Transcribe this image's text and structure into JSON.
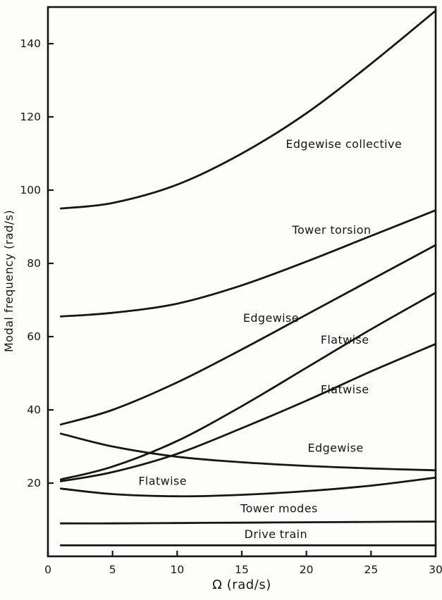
{
  "figure": {
    "background": "#fdfdfb",
    "ink": "#161616"
  },
  "chart_data": {
    "type": "line",
    "title": "",
    "xlabel": "Ω (rad/s)",
    "ylabel": "Modal frequency (rad/s)",
    "xlim": [
      0,
      30
    ],
    "ylim": [
      0,
      150
    ],
    "xticks": [
      0,
      5,
      10,
      15,
      20,
      25,
      30
    ],
    "yticks": [
      20,
      40,
      60,
      80,
      100,
      120,
      140
    ],
    "grid": false,
    "legend": "inline-annotations",
    "x": [
      1,
      5,
      10,
      15,
      20,
      25,
      30
    ],
    "series": [
      {
        "name": "Edgewise collective",
        "values": [
          95,
          96.5,
          101.5,
          110,
          121,
          134.5,
          149
        ]
      },
      {
        "name": "Tower torsion",
        "values": [
          65.5,
          66.5,
          69,
          74,
          80.5,
          87.5,
          94.5
        ]
      },
      {
        "name": "Edgewise",
        "values": [
          36,
          40,
          47.5,
          56.5,
          66,
          75.5,
          85
        ]
      },
      {
        "name": "Flatwise",
        "values": [
          21,
          24.5,
          31.5,
          41,
          51.5,
          62,
          72
        ]
      },
      {
        "name": "Flatwise",
        "values": [
          20.5,
          23,
          28,
          35,
          42.5,
          50.5,
          58
        ]
      },
      {
        "name": "Edgewise",
        "values": [
          33.5,
          30,
          27.2,
          25.7,
          24.7,
          24,
          23.5
        ]
      },
      {
        "name": "Flatwise",
        "values": [
          18.5,
          17,
          16.4,
          16.8,
          17.8,
          19.3,
          21.5
        ]
      },
      {
        "name": "Tower modes",
        "values": [
          9,
          9,
          9.1,
          9.2,
          9.3,
          9.4,
          9.5
        ]
      },
      {
        "name": "Drive train",
        "values": [
          3,
          3,
          3,
          3,
          3,
          3,
          3
        ]
      }
    ],
    "annotations": [
      {
        "text": "Edgewise collective",
        "x": 18.4,
        "y": 112.5
      },
      {
        "text": "Tower torsion",
        "x": 18.9,
        "y": 89
      },
      {
        "text": "Edgewise",
        "x": 15.1,
        "y": 65
      },
      {
        "text": "Flatwise",
        "x": 21.1,
        "y": 59
      },
      {
        "text": "Flatwise",
        "x": 21.1,
        "y": 45.5
      },
      {
        "text": "Edgewise",
        "x": 20.1,
        "y": 29.5
      },
      {
        "text": "Flatwise",
        "x": 7.0,
        "y": 20.5
      },
      {
        "text": "Tower modes",
        "x": 14.9,
        "y": 13
      },
      {
        "text": "Drive train",
        "x": 15.2,
        "y": 6
      }
    ]
  }
}
